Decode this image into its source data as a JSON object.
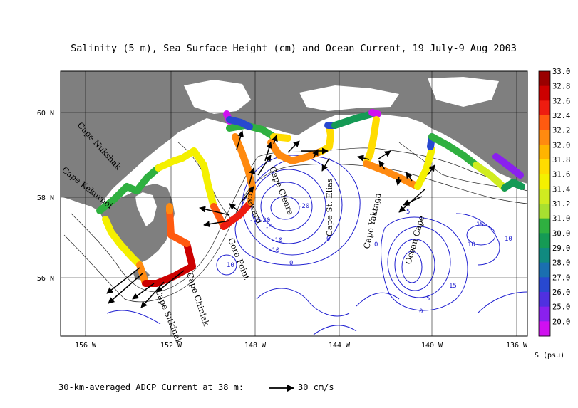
{
  "title": "Salinity (5 m), Sea Surface Height (cm) and Ocean Current, 19 July-9 Aug 2003",
  "footer": {
    "prefix": "30-km-averaged ADCP Current at 38 m:",
    "scale_label": "30 cm/s"
  },
  "axes": {
    "x_ticks": [
      "156 W",
      "152 W",
      "148 W",
      "144 W",
      "140 W",
      "136 W"
    ],
    "y_ticks": [
      "60 N",
      "58 N",
      "56 N"
    ]
  },
  "place_names": [
    "Cape Nukshak",
    "Cape Kekurnoi",
    "Gore Point",
    "Seward",
    "Cape Cleare",
    "Cape St. Elias",
    "Cape Yaktaga",
    "Ocean Cape",
    "Cape Chiniak",
    "Cape Sitkinak"
  ],
  "colorbar": {
    "unit_label": "S (psu)",
    "ticks": [
      "33.0",
      "32.8",
      "32.6",
      "32.4",
      "32.2",
      "32.0",
      "31.8",
      "31.6",
      "31.4",
      "31.2",
      "31.0",
      "30.0",
      "29.0",
      "28.0",
      "27.0",
      "26.0",
      "25.0",
      "20.0"
    ],
    "colors": [
      "#9a0000",
      "#cc0000",
      "#ee1c10",
      "#ff5a10",
      "#ff8a10",
      "#ffb400",
      "#ffdc00",
      "#f4f000",
      "#d0ec20",
      "#a8e030",
      "#2fb040",
      "#159a55",
      "#108a80",
      "#1a6fb0",
      "#2848d0",
      "#5030e0",
      "#8a20ee",
      "#d010f0"
    ]
  },
  "ssh_contour_labels": [
    "-5",
    "-10",
    "-15",
    "-20",
    "-20",
    "-10",
    "10",
    "0",
    "0",
    "0",
    "5",
    "15",
    "10",
    "15",
    "10",
    "0",
    "5"
  ],
  "colors": {
    "land": "#7f7f7f",
    "ocean": "#ffffff",
    "ssh_contour": "#1f1fd0",
    "bathymetry": "#222222",
    "current_arrow": "#000000"
  }
}
